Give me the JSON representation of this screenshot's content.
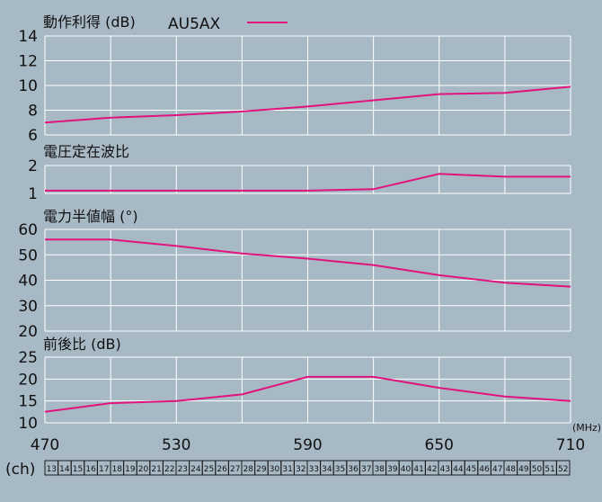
{
  "background": "#a8b9c6",
  "line_color": "#e0147c",
  "grid_color": "#ffffff",
  "chart_data": [
    {
      "type": "line",
      "title": "動作利得 (dB)",
      "legend": "AU5AX",
      "x": [
        470,
        500,
        530,
        560,
        590,
        620,
        650,
        680,
        710
      ],
      "values": [
        7.0,
        7.4,
        7.6,
        7.9,
        8.3,
        8.8,
        9.3,
        9.4,
        9.9
      ],
      "ylim": [
        6,
        14
      ],
      "yticks": [
        "14",
        "12",
        "10",
        "8",
        "6"
      ]
    },
    {
      "type": "line",
      "title": "電圧定在波比",
      "x": [
        470,
        500,
        530,
        560,
        590,
        620,
        650,
        680,
        710
      ],
      "values": [
        1.1,
        1.1,
        1.1,
        1.1,
        1.1,
        1.15,
        1.7,
        1.6,
        1.6
      ],
      "ylim": [
        1,
        2
      ],
      "yticks": [
        "2",
        "1"
      ]
    },
    {
      "type": "line",
      "title": "電力半値幅 (°)",
      "x": [
        470,
        500,
        530,
        560,
        590,
        620,
        650,
        680,
        710
      ],
      "values": [
        56,
        56,
        53.5,
        50.5,
        48.5,
        46,
        42,
        39,
        37.5
      ],
      "ylim": [
        20,
        60
      ],
      "yticks": [
        "60",
        "50",
        "40",
        "30",
        "20"
      ]
    },
    {
      "type": "line",
      "title": "前後比 (dB)",
      "x": [
        470,
        500,
        530,
        560,
        590,
        620,
        650,
        680,
        710
      ],
      "values": [
        12.5,
        14.5,
        15,
        16.5,
        20.5,
        20.5,
        18,
        16,
        15
      ],
      "ylim": [
        10,
        25
      ],
      "yticks": [
        "25",
        "20",
        "15",
        "10"
      ]
    }
  ],
  "x_axis": {
    "ticks": [
      "470",
      "530",
      "590",
      "650",
      "710"
    ],
    "unit": "(MHz)",
    "range": [
      470,
      710
    ]
  },
  "channels": {
    "label": "(ch)",
    "items": [
      "13",
      "14",
      "15",
      "16",
      "17",
      "18",
      "19",
      "20",
      "21",
      "22",
      "23",
      "24",
      "25",
      "26",
      "27",
      "28",
      "29",
      "30",
      "31",
      "32",
      "33",
      "34",
      "35",
      "36",
      "37",
      "38",
      "39",
      "40",
      "41",
      "42",
      "43",
      "44",
      "45",
      "46",
      "47",
      "48",
      "49",
      "50",
      "51",
      "52"
    ]
  }
}
